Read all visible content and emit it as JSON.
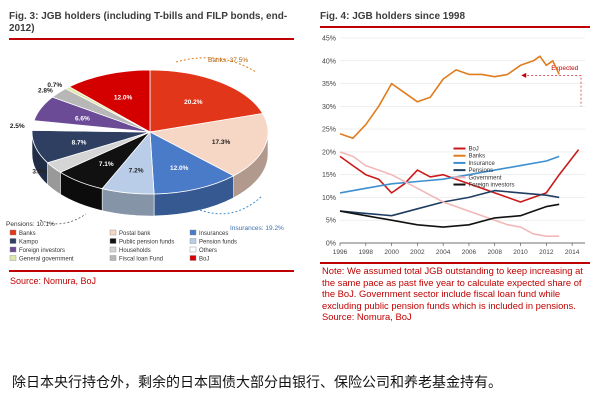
{
  "left": {
    "title_line1": "Fig. 3: JGB holders (including T-bills and FILP bonds, end-",
    "title_line2": "2012)",
    "source": "Source: Nomura, BoJ"
  },
  "right": {
    "title": "Fig. 4: JGB holders since 1998",
    "note_lines": [
      "Note: We assumed total JGB outstanding to keep increasing at",
      "the same pace as past five year to calculate expected share of",
      "the BoJ. Government sector include fiscal loan fund while",
      "excluding public pension funds which is included in pensions.",
      "Source: Nomura, BoJ"
    ]
  },
  "caption": "除日本央行持仓外，剩余的日本国债大部分由银行、保险公司和养老基金持有。",
  "colors": {
    "banks": "#e2361b",
    "postal": "#f6d6c4",
    "insurances": "#4a7bc8",
    "pension_funds": "#b9cde8",
    "public_pension": "#111111",
    "households": "#d5d5d5",
    "kampo": "#2e3f62",
    "others": "#ffffff",
    "foreign": "#6b4a96",
    "fiscal": "#b7b7b7",
    "general_gov": "#dfe8a8",
    "boj": "#d40000",
    "line_boj": "#cc1a1a",
    "line_banks": "#e07c1c",
    "line_insurance": "#3e8fd0",
    "line_pensions": "#1f3d63",
    "line_government": "#f2b8b8",
    "line_foreign": "#111111",
    "accent_red": "#c00000"
  },
  "chart_data": [
    {
      "type": "pie",
      "title": "Fig. 3: JGB holders (including T-bills and FILP bonds, end-2012)",
      "slices": [
        {
          "label": "Banks",
          "value": 20.2,
          "color": "#e2361b"
        },
        {
          "label": "Postal bank",
          "value": 17.3,
          "color": "#f6d6c4"
        },
        {
          "label": "Insurances",
          "value": 12.0,
          "color": "#4a7bc8"
        },
        {
          "label": "Pension funds",
          "value": 7.2,
          "color": "#b9cde8"
        },
        {
          "label": "Public pension funds",
          "value": 7.1,
          "color": "#111111"
        },
        {
          "label": "Households",
          "value": 3.0,
          "color": "#d5d5d5"
        },
        {
          "label": "Kampo",
          "value": 8.7,
          "color": "#2e3f62"
        },
        {
          "label": "Others",
          "value": 2.5,
          "color": "#ffffff"
        },
        {
          "label": "Foreign investors",
          "value": 6.6,
          "color": "#6b4a96"
        },
        {
          "label": "Fiscal loan Fund",
          "value": 2.8,
          "color": "#b7b7b7"
        },
        {
          "label": "General government",
          "value": 0.7,
          "color": "#dfe8a8"
        },
        {
          "label": "BoJ",
          "value": 12.0,
          "color": "#d40000"
        }
      ],
      "slice_labels": [
        "20.2%",
        "17.3%",
        "12.0%",
        "7.2%",
        "7.1%",
        "3.0%",
        "8.7%",
        "2.5%",
        "6.6%",
        "2.8%",
        "0.7%",
        "12.0%"
      ],
      "annotations": {
        "banks": "Banks: 37.5%",
        "insurances": "Insurances: 19.2%",
        "pensions": "Pensions: 10.1%"
      },
      "legend": [
        [
          "Banks",
          "Postal bank",
          "Insurances"
        ],
        [
          "Kampo",
          "Public pension funds",
          "Pension funds"
        ],
        [
          "Foreign investors",
          "Households",
          "Others"
        ],
        [
          "General government",
          "Fiscal loan Fund",
          "BoJ"
        ]
      ],
      "legend_colors": [
        [
          "#e2361b",
          "#f6d6c4",
          "#4a7bc8"
        ],
        [
          "#2e3f62",
          "#111111",
          "#b9cde8"
        ],
        [
          "#6b4a96",
          "#d5d5d5",
          "#ffffff"
        ],
        [
          "#dfe8a8",
          "#b7b7b7",
          "#d40000"
        ]
      ]
    },
    {
      "type": "line",
      "title": "Fig. 4: JGB holders since 1998",
      "xlim": [
        1996,
        2015
      ],
      "ylim": [
        0,
        45
      ],
      "x_ticks": [
        "1996",
        "1998",
        "2000",
        "2002",
        "2004",
        "2006",
        "2008",
        "2010",
        "2012",
        "2014"
      ],
      "y_ticks": [
        "0%",
        "5%",
        "10%",
        "15%",
        "20%",
        "25%",
        "30%",
        "35%",
        "40%",
        "45%"
      ],
      "annotation": "Expected",
      "series": [
        {
          "name": "BoJ",
          "color": "#cc1a1a",
          "x": [
            1996,
            1997,
            1998,
            1999,
            2000,
            2001,
            2002,
            2003,
            2004,
            2005,
            2006,
            2007,
            2008,
            2009,
            2010,
            2011,
            2012,
            2013,
            2014.5
          ],
          "y": [
            19,
            17,
            15,
            14,
            11,
            13,
            16,
            14.5,
            15,
            14,
            13,
            12,
            11,
            10,
            9,
            10,
            11,
            15,
            20.5
          ]
        },
        {
          "name": "Banks",
          "color": "#e07c1c",
          "x": [
            1996,
            1997,
            1998,
            1999,
            2000,
            2001,
            2002,
            2003,
            2004,
            2005,
            2006,
            2007,
            2008,
            2009,
            2010,
            2011,
            2011.5,
            2012,
            2012.5,
            2013
          ],
          "y": [
            24,
            23,
            26,
            30,
            35,
            33,
            31,
            32,
            36,
            38,
            37,
            37,
            36.5,
            37,
            39,
            40,
            41,
            39,
            40,
            37
          ]
        },
        {
          "name": "Insurance",
          "color": "#3e8fd0",
          "x": [
            1996,
            1998,
            2000,
            2002,
            2004,
            2006,
            2008,
            2010,
            2012,
            2013
          ],
          "y": [
            11,
            12,
            13,
            13.5,
            14,
            15,
            16,
            17,
            18,
            19
          ]
        },
        {
          "name": "Pensions",
          "color": "#1f3d63",
          "x": [
            1996,
            1998,
            2000,
            2002,
            2004,
            2006,
            2008,
            2010,
            2012,
            2013
          ],
          "y": [
            7,
            6.5,
            6,
            7.5,
            9,
            10,
            11.5,
            11,
            10.5,
            10
          ]
        },
        {
          "name": "Government",
          "color": "#f2b8b8",
          "x": [
            1996,
            1997,
            1998,
            2000,
            2002,
            2004,
            2006,
            2008,
            2009,
            2010,
            2011,
            2012,
            2013
          ],
          "y": [
            20,
            19,
            17,
            15,
            12,
            9,
            7,
            5,
            4,
            3.5,
            2,
            1.5,
            1.5
          ]
        },
        {
          "name": "Foreign investors",
          "color": "#111111",
          "x": [
            1996,
            1998,
            2000,
            2002,
            2004,
            2006,
            2008,
            2010,
            2011,
            2012,
            2013
          ],
          "y": [
            7,
            6,
            5,
            4,
            3.5,
            4,
            5.5,
            6,
            7,
            8,
            8.5
          ]
        }
      ]
    }
  ]
}
